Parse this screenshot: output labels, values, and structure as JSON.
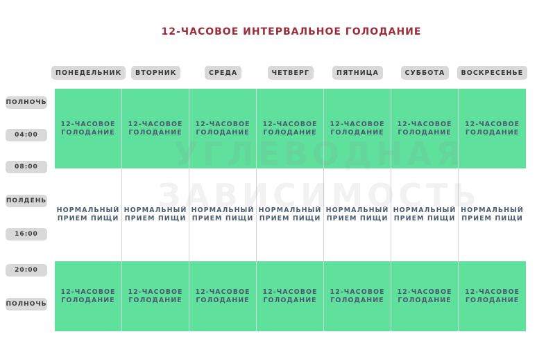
{
  "title": "12-ЧАСОВОЕ ИНТЕРВАЛЬНОЕ ГОЛОДАНИЕ",
  "watermark": [
    "УГЛЕВОДНАЯ",
    "ЗАВИСИМОСТЬ"
  ],
  "days": [
    "ПОНЕДЕЛЬНИК",
    "ВТОРНИК",
    "СРЕДА",
    "ЧЕТВЕРГ",
    "ПЯТНИЦА",
    "СУББОТА",
    "ВОСКРЕСЕНЬЕ"
  ],
  "times": [
    "ПОЛНОЧЬ",
    "04:00",
    "08:00",
    "ПОЛДЕНЬ",
    "16:00",
    "20:00",
    "ПОЛНОЧЬ"
  ],
  "rows": [
    {
      "cells": [
        "12-ЧАСОВОЕ\nГОЛОДАНИЕ",
        "12-ЧАСОВОЕ\nГОЛОДАНИЕ",
        "12-ЧАСОВОЕ\nГОЛОДАНИЕ",
        "12-ЧАСОВОЕ\nГОЛОДАНИЕ",
        "12-ЧАСОВОЕ\nГОЛОДАНИЕ",
        "12-ЧАСОВОЕ\nГОЛОДАНИЕ",
        "12-ЧАСОВОЕ\nГОЛОДАНИЕ"
      ]
    },
    {
      "cells": [
        "НОРМАЛЬНЫЙ\nПРИЕМ ПИЩИ",
        "НОРМАЛЬНЫЙ\nПРИЕМ ПИЩИ",
        "НОРМАЛЬНЫЙ\nПРИЕМ ПИЩИ",
        "НОРМАЛЬНЫЙ\nПРИЕМ ПИЩИ",
        "НОРМАЛЬНЫЙ\nПРИЕМ ПИЩИ",
        "НОРМАЛЬНЫЙ\nПРИЕМ ПИЩИ",
        "НОРМАЛЬНЫЙ\nПРИЕМ ПИЩИ"
      ]
    },
    {
      "cells": [
        "12-ЧАСОВОЕ\nГОЛОДАНИЕ",
        "12-ЧАСОВОЕ\nГОЛОДАНИЕ",
        "12-ЧАСОВОЕ\nГОЛОДАНИЕ",
        "12-ЧАСОВОЕ\nГОЛОДАНИЕ",
        "12-ЧАСОВОЕ\nГОЛОДАНИЕ",
        "12-ЧАСОВОЕ\nГОЛОДАНИЕ",
        "12-ЧАСОВОЕ\nГОЛОДАНИЕ"
      ]
    }
  ]
}
